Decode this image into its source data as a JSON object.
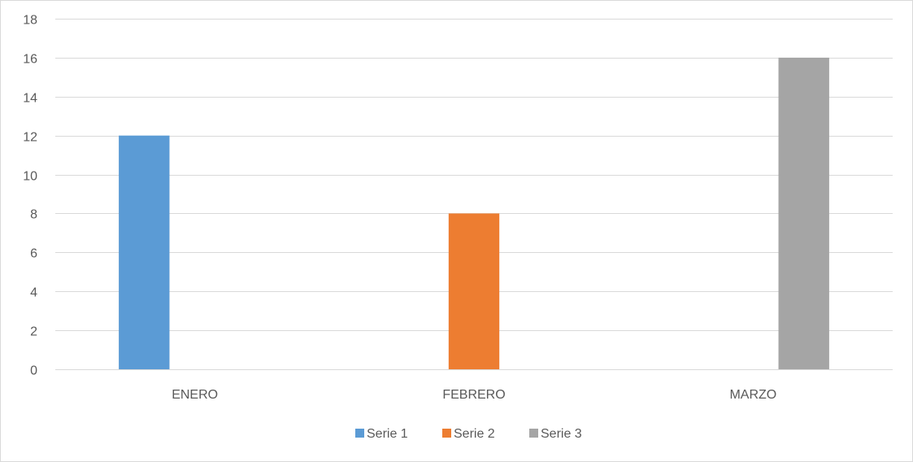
{
  "chart_data": {
    "type": "bar",
    "categories": [
      "ENERO",
      "FEBRERO",
      "MARZO"
    ],
    "series": [
      {
        "name": "Serie 1",
        "color": "#5b9bd5",
        "values": [
          12,
          null,
          null
        ]
      },
      {
        "name": "Serie 2",
        "color": "#ed7d31",
        "values": [
          null,
          8,
          null
        ]
      },
      {
        "name": "Serie 3",
        "color": "#a5a5a5",
        "values": [
          null,
          null,
          16
        ]
      }
    ],
    "ylim": [
      0,
      18
    ],
    "yticks": [
      0,
      2,
      4,
      6,
      8,
      10,
      12,
      14,
      16,
      18
    ],
    "grid": true,
    "legend_position": "bottom",
    "title": "",
    "xlabel": "",
    "ylabel": ""
  }
}
